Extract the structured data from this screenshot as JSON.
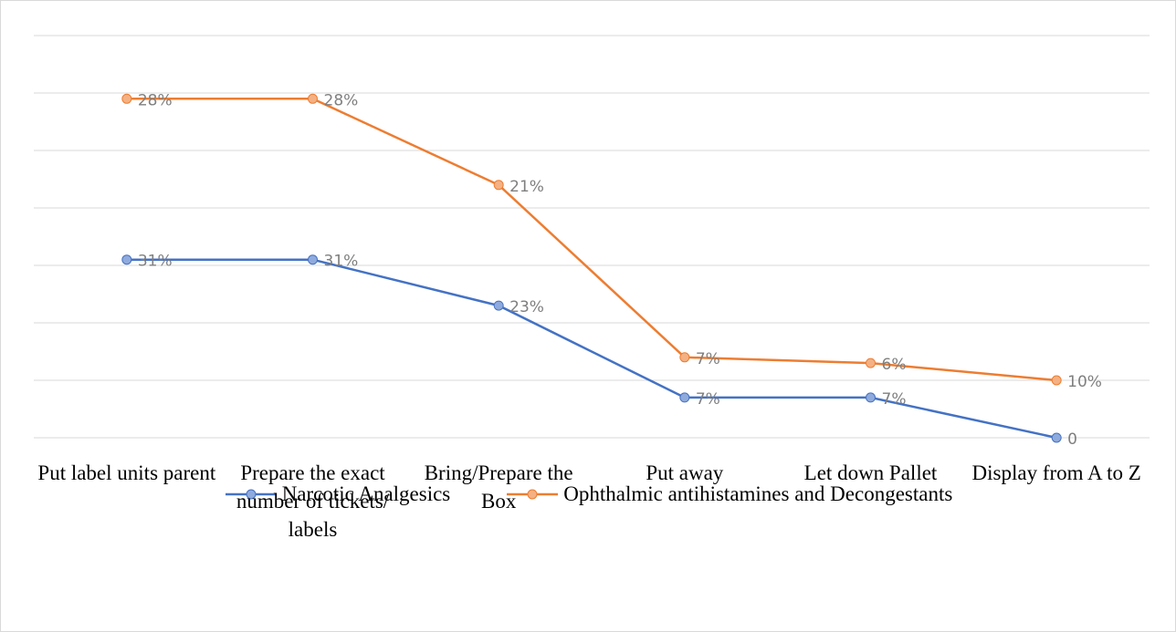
{
  "chart_data": {
    "type": "line",
    "stacked": true,
    "categories": [
      "Put label units parent",
      "Prepare the exact number of tickets/ labels",
      "Bring/Prepare the Box",
      "Put away",
      "Let down Pallet",
      "Display from A to Z"
    ],
    "series": [
      {
        "name": "Narcotic Analgesics",
        "color": "#4472c4",
        "values": [
          31,
          31,
          23,
          7,
          7,
          0
        ],
        "value_labels": [
          "31%",
          "31%",
          "23%",
          "7%",
          "7%",
          "0"
        ]
      },
      {
        "name": "Ophthalmic antihistamines and Decongestants",
        "color": "#ed7d31",
        "values": [
          28,
          28,
          21,
          7,
          6,
          10
        ],
        "value_labels": [
          "28%",
          "28%",
          "21%",
          "7%",
          "6%",
          "10%"
        ]
      }
    ],
    "ylim": [
      0,
      70
    ],
    "yticks": [
      0,
      10,
      20,
      30,
      40,
      50,
      60,
      70
    ],
    "grid": true,
    "legend": "bottom"
  }
}
